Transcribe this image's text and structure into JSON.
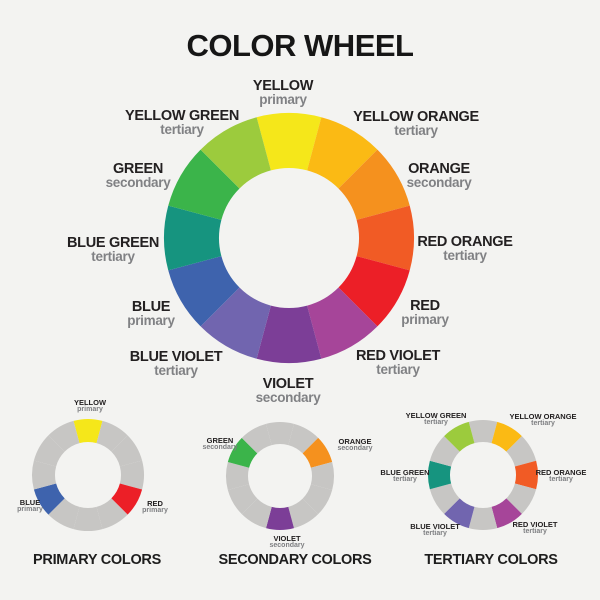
{
  "title": "COLOR WHEEL",
  "ring_gray": "#C7C6C4",
  "main_wheel": {
    "segments": [
      {
        "name": "YELLOW",
        "type": "primary",
        "color": "#F5E71A"
      },
      {
        "name": "YELLOW ORANGE",
        "type": "tertiary",
        "color": "#FBBA14"
      },
      {
        "name": "ORANGE",
        "type": "secondary",
        "color": "#F5911E"
      },
      {
        "name": "RED ORANGE",
        "type": "tertiary",
        "color": "#F15B25"
      },
      {
        "name": "RED",
        "type": "primary",
        "color": "#EC1F27"
      },
      {
        "name": "RED VIOLET",
        "type": "tertiary",
        "color": "#A64599"
      },
      {
        "name": "VIOLET",
        "type": "secondary",
        "color": "#7C3E97"
      },
      {
        "name": "BLUE VIOLET",
        "type": "tertiary",
        "color": "#7165AF"
      },
      {
        "name": "BLUE",
        "type": "primary",
        "color": "#3E63AD"
      },
      {
        "name": "BLUE GREEN",
        "type": "tertiary",
        "color": "#16947F"
      },
      {
        "name": "GREEN",
        "type": "secondary",
        "color": "#3BB44A"
      },
      {
        "name": "YELLOW GREEN",
        "type": "tertiary",
        "color": "#9CCB3D"
      }
    ]
  },
  "small_wheels": {
    "primary": {
      "caption": "PRIMARY COLORS",
      "segments": [
        "#F5E71A",
        null,
        null,
        null,
        "#EC1F27",
        null,
        null,
        null,
        "#3E63AD",
        null,
        null,
        null
      ],
      "labels": [
        {
          "name": "YELLOW",
          "type": "primary"
        },
        {
          "name": "RED",
          "type": "primary"
        },
        {
          "name": "BLUE",
          "type": "primary"
        }
      ]
    },
    "secondary": {
      "caption": "SECONDARY COLORS",
      "segments": [
        null,
        null,
        "#F5911E",
        null,
        null,
        null,
        "#7C3E97",
        null,
        null,
        null,
        "#3BB44A",
        null
      ],
      "labels": [
        {
          "name": "GREEN",
          "type": "secondary"
        },
        {
          "name": "ORANGE",
          "type": "secondary"
        },
        {
          "name": "VIOLET",
          "type": "secondary"
        }
      ]
    },
    "tertiary": {
      "caption": "TERTIARY COLORS",
      "segments": [
        null,
        "#FBBA14",
        null,
        "#F15B25",
        null,
        "#A64599",
        null,
        "#7165AF",
        null,
        "#16947F",
        null,
        "#9CCB3D"
      ],
      "labels": [
        {
          "name": "YELLOW GREEN",
          "type": "tertiary"
        },
        {
          "name": "YELLOW ORANGE",
          "type": "tertiary"
        },
        {
          "name": "RED ORANGE",
          "type": "tertiary"
        },
        {
          "name": "RED VIOLET",
          "type": "tertiary"
        },
        {
          "name": "BLUE VIOLET",
          "type": "tertiary"
        },
        {
          "name": "BLUE GREEN",
          "type": "tertiary"
        }
      ]
    }
  }
}
